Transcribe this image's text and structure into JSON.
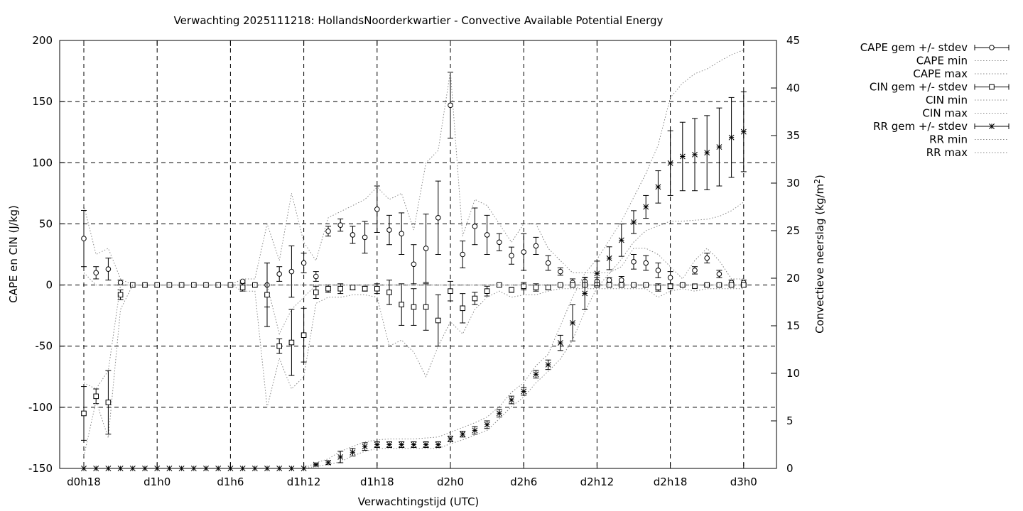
{
  "chart_data": {
    "type": "line",
    "title": "Verwachting 2025111218: HollandsNoorderkwartier - Convective Available Potential Energy",
    "xlabel": "Verwachtingstijd (UTC)",
    "ylabel": "CAPE en CIN (J/kg)",
    "y2label": "Convectieve neerslag (kg/m²)",
    "x_unit": "hours since d0h18",
    "x_ticks": [
      {
        "x": 0,
        "label": "d0h18"
      },
      {
        "x": 6,
        "label": "d1h0"
      },
      {
        "x": 12,
        "label": "d1h6"
      },
      {
        "x": 18,
        "label": "d1h12"
      },
      {
        "x": 24,
        "label": "d1h18"
      },
      {
        "x": 30,
        "label": "d2h0"
      },
      {
        "x": 36,
        "label": "d2h6"
      },
      {
        "x": 42,
        "label": "d2h12"
      },
      {
        "x": 48,
        "label": "d2h18"
      },
      {
        "x": 54,
        "label": "d3h0"
      }
    ],
    "xlim": [
      -2,
      56
    ],
    "ylim": [
      -150,
      200
    ],
    "y_ticks": [
      -150,
      -100,
      -50,
      0,
      50,
      100,
      150,
      200
    ],
    "y2lim": [
      0,
      45
    ],
    "y2_ticks": [
      0,
      5,
      10,
      15,
      20,
      25,
      30,
      35,
      40,
      45
    ],
    "grid": true,
    "legend_position": "outside-right",
    "x": [
      0,
      1,
      2,
      3,
      4,
      5,
      6,
      7,
      8,
      9,
      10,
      11,
      12,
      13,
      14,
      15,
      16,
      17,
      18,
      19,
      20,
      21,
      22,
      23,
      24,
      25,
      26,
      27,
      28,
      29,
      30,
      31,
      32,
      33,
      34,
      35,
      36,
      37,
      38,
      39,
      40,
      41,
      42,
      43,
      44,
      45,
      46,
      47,
      48,
      49,
      50,
      51,
      52,
      53,
      54
    ],
    "series": [
      {
        "name": "CAPE gem +/- stdev",
        "axis": "y1",
        "marker": "circle",
        "values": [
          38,
          10,
          13,
          2,
          0,
          0,
          0,
          0,
          0,
          0,
          0,
          0,
          0,
          3,
          0,
          0,
          9,
          11,
          18,
          7,
          44,
          49,
          41,
          39,
          62,
          45,
          42,
          17,
          30,
          55,
          147,
          25,
          48,
          41,
          35,
          24,
          27,
          32,
          18,
          11,
          2,
          3,
          3,
          4,
          4,
          19,
          18,
          12,
          6,
          0,
          12,
          22,
          9,
          2,
          2
        ],
        "stdev": [
          23,
          5,
          9,
          2,
          0,
          0,
          0,
          0,
          0,
          0,
          0,
          0,
          0,
          1,
          0,
          18,
          6,
          21,
          8,
          4,
          4,
          5,
          7,
          13,
          19,
          12,
          17,
          16,
          28,
          30,
          27,
          11,
          15,
          16,
          7,
          7,
          15,
          7,
          6,
          3,
          3,
          3,
          3,
          2,
          3,
          6,
          6,
          6,
          5,
          1,
          3,
          4,
          3,
          2,
          2
        ]
      },
      {
        "name": "CAPE min",
        "axis": "y1",
        "style": "dotted",
        "values": [
          10,
          0,
          0,
          0,
          0,
          0,
          0,
          0,
          0,
          0,
          0,
          0,
          0,
          0,
          0,
          0,
          0,
          0,
          0,
          0,
          0,
          0,
          0,
          0,
          0,
          0,
          0,
          0,
          0,
          0,
          0,
          0,
          0,
          0,
          0,
          0,
          0,
          0,
          0,
          0,
          0,
          0,
          0,
          0,
          0,
          0,
          0,
          0,
          0,
          0,
          0,
          0,
          0,
          0,
          0
        ]
      },
      {
        "name": "CAPE max",
        "axis": "y1",
        "style": "dotted",
        "values": [
          65,
          25,
          30,
          5,
          0,
          0,
          0,
          0,
          0,
          0,
          0,
          0,
          0,
          5,
          5,
          50,
          20,
          75,
          35,
          20,
          55,
          60,
          65,
          70,
          80,
          70,
          75,
          45,
          100,
          110,
          175,
          40,
          70,
          65,
          50,
          35,
          50,
          50,
          30,
          20,
          10,
          10,
          10,
          10,
          15,
          30,
          30,
          25,
          15,
          5,
          20,
          30,
          20,
          5,
          5
        ]
      },
      {
        "name": "CIN gem +/- stdev",
        "axis": "y1",
        "marker": "square",
        "values": [
          -105,
          -91,
          -96,
          -8,
          0,
          0,
          0,
          0,
          0,
          0,
          0,
          0,
          0,
          -2,
          0,
          -8,
          -50,
          -47,
          -41,
          -6,
          -3,
          -3,
          -2,
          -3,
          -3,
          -6,
          -16,
          -18,
          -18,
          -29,
          -5,
          -19,
          -11,
          -5,
          0,
          -4,
          -1,
          -2,
          -2,
          0,
          0,
          0,
          0,
          0,
          0,
          0,
          0,
          -2,
          -1,
          0,
          -1,
          0,
          0,
          0,
          0
        ],
        "stdev": [
          22,
          6,
          26,
          4,
          0,
          0,
          0,
          0,
          0,
          0,
          0,
          0,
          0,
          3,
          0,
          26,
          6,
          27,
          22,
          5,
          3,
          4,
          2,
          2,
          4,
          10,
          17,
          15,
          19,
          21,
          8,
          12,
          5,
          4,
          1,
          2,
          3,
          3,
          2,
          1,
          1,
          1,
          1,
          1,
          1,
          1,
          1,
          3,
          2,
          1,
          1,
          1,
          1,
          1,
          1
        ]
      },
      {
        "name": "CIN min",
        "axis": "y1",
        "style": "dotted",
        "values": [
          -140,
          -95,
          -125,
          -20,
          0,
          0,
          0,
          0,
          0,
          0,
          0,
          0,
          0,
          -5,
          -5,
          -100,
          -60,
          -85,
          -75,
          -15,
          -10,
          -10,
          -8,
          -8,
          -10,
          -50,
          -45,
          -55,
          -75,
          -50,
          -30,
          -40,
          -20,
          -10,
          -5,
          -10,
          -8,
          -8,
          -5,
          -3,
          -3,
          -3,
          -3,
          -3,
          -3,
          -3,
          -3,
          -10,
          -5,
          -3,
          -5,
          -3,
          -3,
          -3,
          -3
        ]
      },
      {
        "name": "CIN max",
        "axis": "y1",
        "style": "dotted",
        "values": [
          -80,
          -85,
          -70,
          0,
          0,
          0,
          0,
          0,
          0,
          0,
          0,
          0,
          0,
          0,
          0,
          0,
          -40,
          -20,
          -10,
          0,
          0,
          0,
          0,
          0,
          0,
          0,
          0,
          0,
          0,
          0,
          0,
          0,
          0,
          0,
          0,
          0,
          0,
          0,
          0,
          0,
          0,
          0,
          0,
          0,
          0,
          0,
          0,
          0,
          0,
          0,
          0,
          0,
          0,
          0,
          0
        ]
      },
      {
        "name": "RR gem +/- stdev",
        "axis": "y2",
        "marker": "star",
        "values": [
          0,
          0,
          0,
          0,
          0,
          0,
          0,
          0,
          0,
          0,
          0,
          0,
          0,
          0,
          0,
          0,
          0,
          0,
          0,
          0.4,
          0.6,
          1.2,
          1.7,
          2.3,
          2.5,
          2.5,
          2.5,
          2.5,
          2.5,
          2.5,
          3.1,
          3.6,
          4.0,
          4.6,
          5.8,
          7.2,
          8.1,
          9.9,
          10.9,
          13.2,
          15.3,
          18.4,
          20.5,
          22.1,
          24.0,
          25.9,
          27.5,
          29.6,
          32.1,
          32.8,
          33.0,
          33.2,
          33.8,
          34.8,
          35.4
        ],
        "stdev": [
          0,
          0,
          0,
          0,
          0,
          0,
          0,
          0,
          0,
          0,
          0,
          0,
          0,
          0,
          0,
          0,
          0,
          0,
          0,
          0.1,
          0.2,
          0.6,
          0.4,
          0.4,
          0.3,
          0.3,
          0.3,
          0.3,
          0.3,
          0.3,
          0.3,
          0.3,
          0.4,
          0.4,
          0.4,
          0.4,
          0.4,
          0.4,
          0.5,
          0.8,
          1.9,
          1.7,
          1.3,
          1.2,
          1.7,
          1.2,
          1.2,
          1.7,
          3.4,
          3.6,
          3.8,
          3.9,
          4.1,
          4.2,
          4.2
        ]
      },
      {
        "name": "RR min",
        "axis": "y2",
        "style": "dotted",
        "values": [
          0,
          0,
          0,
          0,
          0,
          0,
          0,
          0,
          0,
          0,
          0,
          0,
          0,
          0,
          0,
          0,
          0,
          0,
          0,
          0.2,
          0.4,
          0.7,
          1.3,
          1.8,
          2.1,
          2.1,
          2.1,
          2.1,
          2.1,
          2.1,
          2.6,
          3.0,
          3.5,
          4.0,
          5.2,
          6.5,
          7.5,
          9.0,
          10.2,
          11.5,
          13.5,
          16.5,
          19.0,
          20.5,
          22.0,
          23.8,
          25.0,
          25.5,
          26.0,
          26.0,
          26.1,
          26.2,
          26.5,
          27.1,
          28.0
        ]
      },
      {
        "name": "RR max",
        "axis": "y2",
        "style": "dotted",
        "values": [
          0,
          0,
          0,
          0,
          0,
          0,
          0,
          0,
          0,
          0,
          0,
          0,
          0,
          0,
          0,
          0,
          0,
          0,
          0,
          0.6,
          1.0,
          1.8,
          2.3,
          2.8,
          3.0,
          3.1,
          3.1,
          3.1,
          3.2,
          3.3,
          3.8,
          4.3,
          4.8,
          5.4,
          6.5,
          8.0,
          9.0,
          10.8,
          12.0,
          15.0,
          18.0,
          20.5,
          22.0,
          24.0,
          26.0,
          28.5,
          31.0,
          34.0,
          39.0,
          40.5,
          41.5,
          42.0,
          42.8,
          43.5,
          44.0
        ]
      }
    ]
  }
}
